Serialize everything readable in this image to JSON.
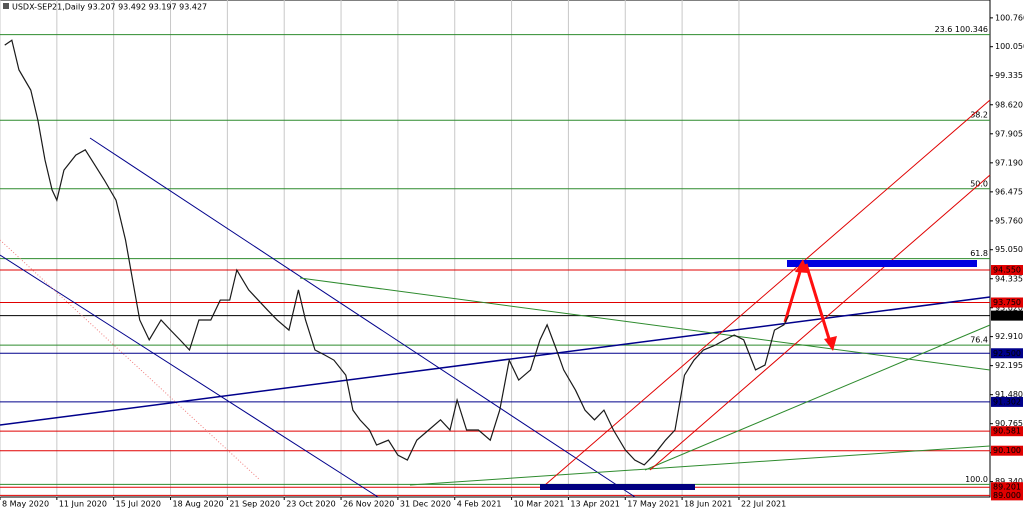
{
  "chart_data": {
    "type": "line",
    "title": "USDX-SEP21,Daily  93.207 93.492 93.197 93.427",
    "x": [
      2,
      5,
      8,
      13,
      16,
      19,
      22,
      24,
      27,
      32,
      36,
      40,
      44,
      49,
      53,
      56,
      59,
      63,
      68,
      72,
      76,
      80,
      84,
      89,
      93,
      97,
      100,
      105,
      109,
      113,
      117,
      122,
      126,
      129,
      133,
      137,
      141,
      146,
      149,
      152,
      156,
      159,
      164,
      168,
      172,
      176,
      181,
      186,
      190,
      193,
      197,
      202,
      207,
      211,
      215,
      219,
      224,
      228,
      231,
      235,
      238,
      243,
      247,
      251,
      255,
      259,
      264,
      268,
      272,
      276,
      281,
      285,
      289,
      293,
      297,
      302,
      306,
      310,
      314,
      319,
      323,
      327,
      331,
      333
    ],
    "values": [
      100.09,
      100.21,
      99.48,
      98.98,
      98.24,
      97.26,
      96.52,
      96.27,
      97.01,
      97.38,
      97.51,
      97.14,
      96.77,
      96.27,
      95.29,
      94.3,
      93.32,
      92.83,
      93.32,
      93.07,
      92.83,
      92.58,
      93.32,
      93.32,
      93.81,
      93.81,
      94.55,
      94.06,
      93.81,
      93.56,
      93.32,
      93.07,
      94.06,
      93.32,
      92.58,
      92.46,
      92.33,
      91.96,
      91.1,
      90.86,
      90.61,
      90.24,
      90.36,
      89.99,
      89.87,
      90.36,
      90.61,
      90.86,
      90.61,
      91.35,
      90.61,
      90.61,
      90.36,
      91.1,
      92.33,
      91.84,
      92.09,
      92.83,
      93.2,
      92.58,
      92.09,
      91.59,
      91.1,
      90.86,
      91.1,
      90.61,
      90.12,
      89.87,
      89.75,
      89.99,
      90.36,
      90.61,
      91.96,
      92.33,
      92.58,
      92.7,
      92.83,
      92.95,
      92.83,
      92.09,
      92.21,
      93.07,
      93.2,
      93.43
    ],
    "color": "#1a1a1a",
    "xlim": [
      0,
      418
    ],
    "xticks": [
      {
        "value": 0,
        "label": "8 May 2020"
      },
      {
        "value": 24,
        "label": "11 Jun 2020"
      },
      {
        "value": 48,
        "label": "15 Jul 2020"
      },
      {
        "value": 72,
        "label": "18 Aug 2020"
      },
      {
        "value": 96,
        "label": "21 Sep 2020"
      },
      {
        "value": 120,
        "label": "23 Oct 2020"
      },
      {
        "value": 144,
        "label": "26 Nov 2020"
      },
      {
        "value": 168,
        "label": "31 Dec 2020"
      },
      {
        "value": 192,
        "label": "4 Feb 2021"
      },
      {
        "value": 216,
        "label": "10 Mar 2021"
      },
      {
        "value": 240,
        "label": "13 Apr 2021"
      },
      {
        "value": 264,
        "label": "17 May 2021"
      },
      {
        "value": 288,
        "label": "18 Jun 2021"
      },
      {
        "value": 312,
        "label": "22 Jul 2021"
      }
    ],
    "ylim": [
      88.96,
      101.2
    ],
    "yticks": [
      {
        "value": 100.76,
        "label": "100.760"
      },
      {
        "value": 100.05,
        "label": "100.050"
      },
      {
        "value": 99.335,
        "label": "99.335"
      },
      {
        "value": 98.62,
        "label": "98.620"
      },
      {
        "value": 97.905,
        "label": "97.905"
      },
      {
        "value": 97.19,
        "label": "97.190"
      },
      {
        "value": 96.475,
        "label": "96.475"
      },
      {
        "value": 95.76,
        "label": "95.760"
      },
      {
        "value": 95.05,
        "label": "95.050"
      },
      {
        "value": 94.335,
        "label": "94.335"
      },
      {
        "value": 93.62,
        "label": "93.620"
      },
      {
        "value": 92.91,
        "label": "92.910"
      },
      {
        "value": 92.195,
        "label": "92.195"
      },
      {
        "value": 91.48,
        "label": "91.480"
      },
      {
        "value": 90.765,
        "label": "90.765"
      },
      {
        "value": 90.05,
        "label": "90.050"
      },
      {
        "value": 89.34,
        "label": "89.340"
      }
    ],
    "levels": [
      {
        "value": 94.55,
        "label": "94.550",
        "color": "#e00000"
      },
      {
        "value": 93.75,
        "label": "93.750",
        "color": "#e00000"
      },
      {
        "value": 93.427,
        "label": "93.427",
        "color": "#000000"
      },
      {
        "value": 92.5,
        "label": "92.500",
        "color": "#00008b"
      },
      {
        "value": 91.302,
        "label": "91.302",
        "color": "#00008b"
      },
      {
        "value": 90.581,
        "label": "90.581",
        "color": "#e00000"
      },
      {
        "value": 90.1,
        "label": "90.100",
        "color": "#e00000"
      },
      {
        "value": 89.201,
        "label": "89.201",
        "color": "#e00000"
      },
      {
        "value": 89.0,
        "label": "89.000",
        "color": "#e00000"
      }
    ],
    "fib_levels": [
      {
        "value": 100.346,
        "label": "23.6 100.346"
      },
      {
        "value": 98.24,
        "label": "38.2"
      },
      {
        "value": 96.55,
        "label": "50.0"
      },
      {
        "value": 94.83,
        "label": "61.8"
      },
      {
        "value": 92.7,
        "label": "76.4"
      },
      {
        "value": 89.27,
        "label": "100.0"
      }
    ],
    "fib_color": "#2e8b2e",
    "grid": true
  }
}
